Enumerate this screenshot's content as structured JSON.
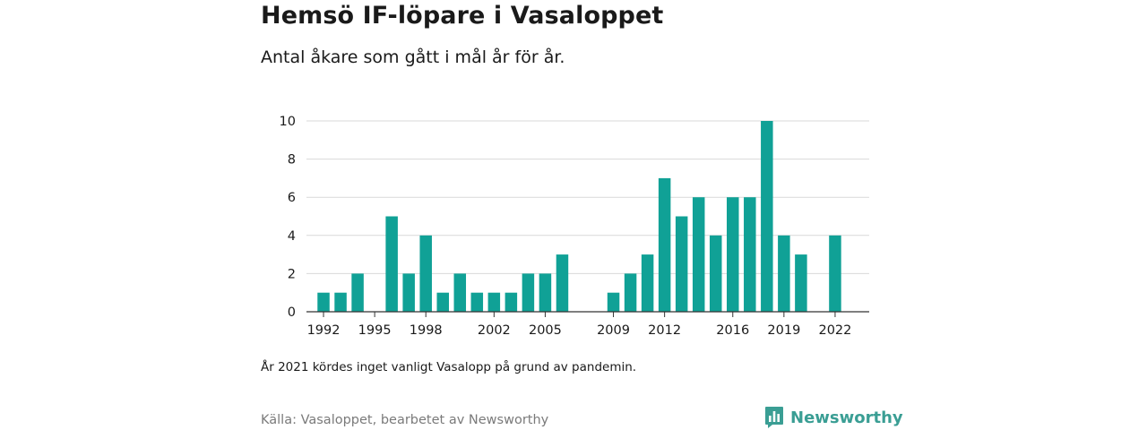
{
  "header": {
    "title": "Hemsö IF-löpare i Vasaloppet",
    "subtitle": "Antal åkare som gått i mål år för år."
  },
  "footer": {
    "note": "År 2021 kördes inget vanligt Vasalopp på grund av pandemin.",
    "source": "Källa: Vasaloppet, bearbetet av Newsworthy",
    "logo_text": "Newsworthy",
    "logo_icon": "newsworthy-logo-icon"
  },
  "colors": {
    "bar": "#10a196",
    "grid": "#d9d9d9",
    "axis": "#333333",
    "brand": "#3a9e94"
  },
  "chart_data": {
    "type": "bar",
    "title": "Hemsö IF-löpare i Vasaloppet",
    "subtitle": "Antal åkare som gått i mål år för år.",
    "xlabel": "",
    "ylabel": "",
    "x": [
      1992,
      1993,
      1994,
      1996,
      1997,
      1998,
      1999,
      2000,
      2001,
      2002,
      2003,
      2004,
      2005,
      2006,
      2009,
      2010,
      2011,
      2012,
      2013,
      2014,
      2015,
      2016,
      2017,
      2018,
      2019,
      2020,
      2022
    ],
    "values": [
      1,
      1,
      2,
      5,
      2,
      4,
      1,
      2,
      1,
      1,
      1,
      2,
      2,
      3,
      1,
      2,
      3,
      7,
      5,
      6,
      4,
      6,
      6,
      10,
      4,
      3,
      4
    ],
    "xlim": [
      1991,
      2024
    ],
    "xticks": [
      1992,
      1995,
      1998,
      2002,
      2005,
      2009,
      2012,
      2016,
      2019,
      2022
    ],
    "ylim": [
      0,
      10
    ],
    "yticks": [
      0,
      2,
      4,
      6,
      8,
      10
    ],
    "grid": true
  }
}
